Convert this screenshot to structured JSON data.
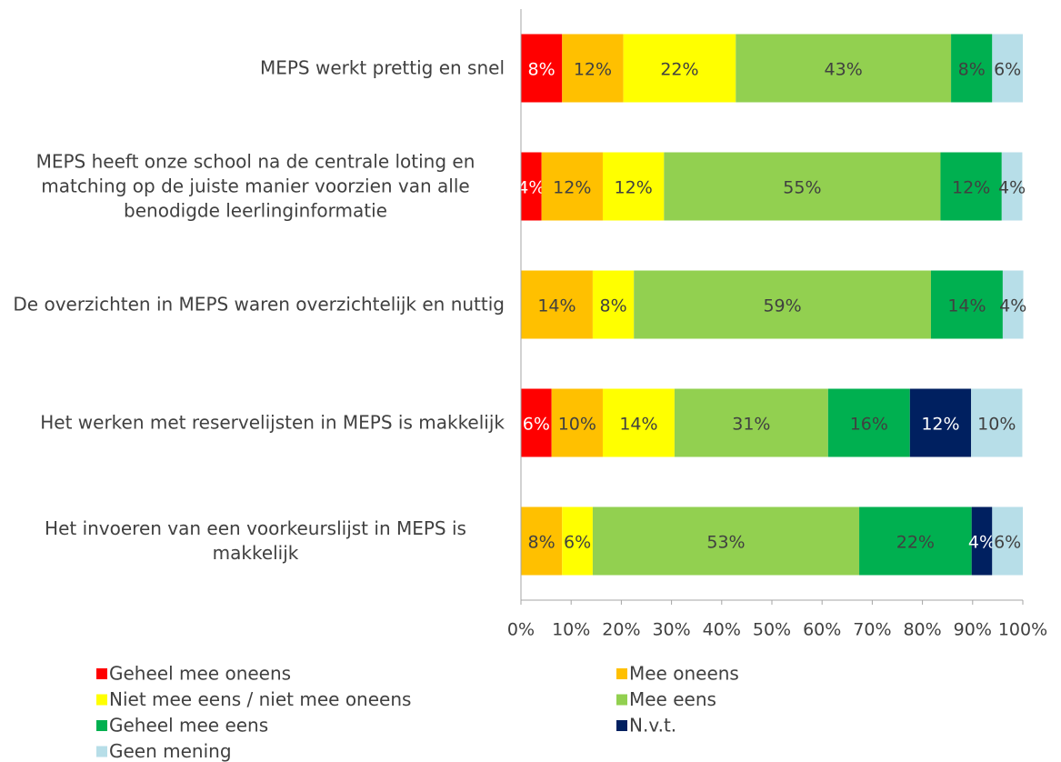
{
  "chart_data": {
    "type": "stacked-barh",
    "categories": [
      "MEPS werkt prettig en snel",
      "MEPS heeft onze school na de centrale loting en matching op de juiste manier voorzien van alle benodigde leerlinginformatie",
      "De overzichten in MEPS waren overzichtelijk en nuttig",
      "Het werken met reservelijsten in MEPS is makkelijk",
      "Het invoeren van een voorkeurslijst in MEPS is makkelijk"
    ],
    "series": [
      {
        "name": "Geheel mee oneens",
        "color": "#ff0000",
        "label_color": "#ffffff",
        "values": [
          8.2,
          4.1,
          0,
          6.1,
          0
        ],
        "value_labels": [
          "8%",
          "4%",
          null,
          "6%",
          null
        ]
      },
      {
        "name": "Mee oneens",
        "color": "#ffc000",
        "label_color": "#404040",
        "values": [
          12.2,
          12.2,
          14.3,
          10.2,
          8.2
        ],
        "value_labels": [
          "12%",
          "12%",
          "14%",
          "10%",
          "8%"
        ]
      },
      {
        "name": "Niet mee eens / niet mee oneens",
        "color": "#ffff00",
        "label_color": "#404040",
        "values": [
          22.4,
          12.2,
          8.2,
          14.3,
          6.1
        ],
        "value_labels": [
          "22%",
          "12%",
          "8%",
          "14%",
          "6%"
        ]
      },
      {
        "name": "Mee eens",
        "color": "#92d050",
        "label_color": "#404040",
        "values": [
          42.9,
          55.1,
          59.2,
          30.6,
          53.1
        ],
        "value_labels": [
          "43%",
          "55%",
          "59%",
          "31%",
          "53%"
        ]
      },
      {
        "name": "Geheel mee eens",
        "color": "#00b050",
        "label_color": "#404040",
        "values": [
          8.2,
          12.2,
          14.3,
          16.3,
          22.4
        ],
        "value_labels": [
          "8%",
          "12%",
          "14%",
          "16%",
          "22%"
        ]
      },
      {
        "name": "N.v.t.",
        "color": "#002060",
        "label_color": "#ffffff",
        "values": [
          0,
          0,
          0,
          12.2,
          4.1
        ],
        "value_labels": [
          null,
          null,
          null,
          "12%",
          "4%"
        ]
      },
      {
        "name": "Geen mening",
        "color": "#b7dee8",
        "label_color": "#404040",
        "values": [
          6.1,
          4.1,
          4.1,
          10.2,
          6.1
        ],
        "value_labels": [
          "6%",
          "4%",
          "4%",
          "10%",
          "6%"
        ]
      }
    ],
    "xlim": [
      0,
      100
    ],
    "xticks": [
      {
        "value": 0,
        "label": "0%"
      },
      {
        "value": 10,
        "label": "10%"
      },
      {
        "value": 20,
        "label": "20%"
      },
      {
        "value": 30,
        "label": "30%"
      },
      {
        "value": 40,
        "label": "40%"
      },
      {
        "value": 50,
        "label": "50%"
      },
      {
        "value": 60,
        "label": "60%"
      },
      {
        "value": 70,
        "label": "70%"
      },
      {
        "value": 80,
        "label": "80%"
      },
      {
        "value": 90,
        "label": "90%"
      },
      {
        "value": 100,
        "label": "100%"
      }
    ],
    "legend": "bottom"
  }
}
